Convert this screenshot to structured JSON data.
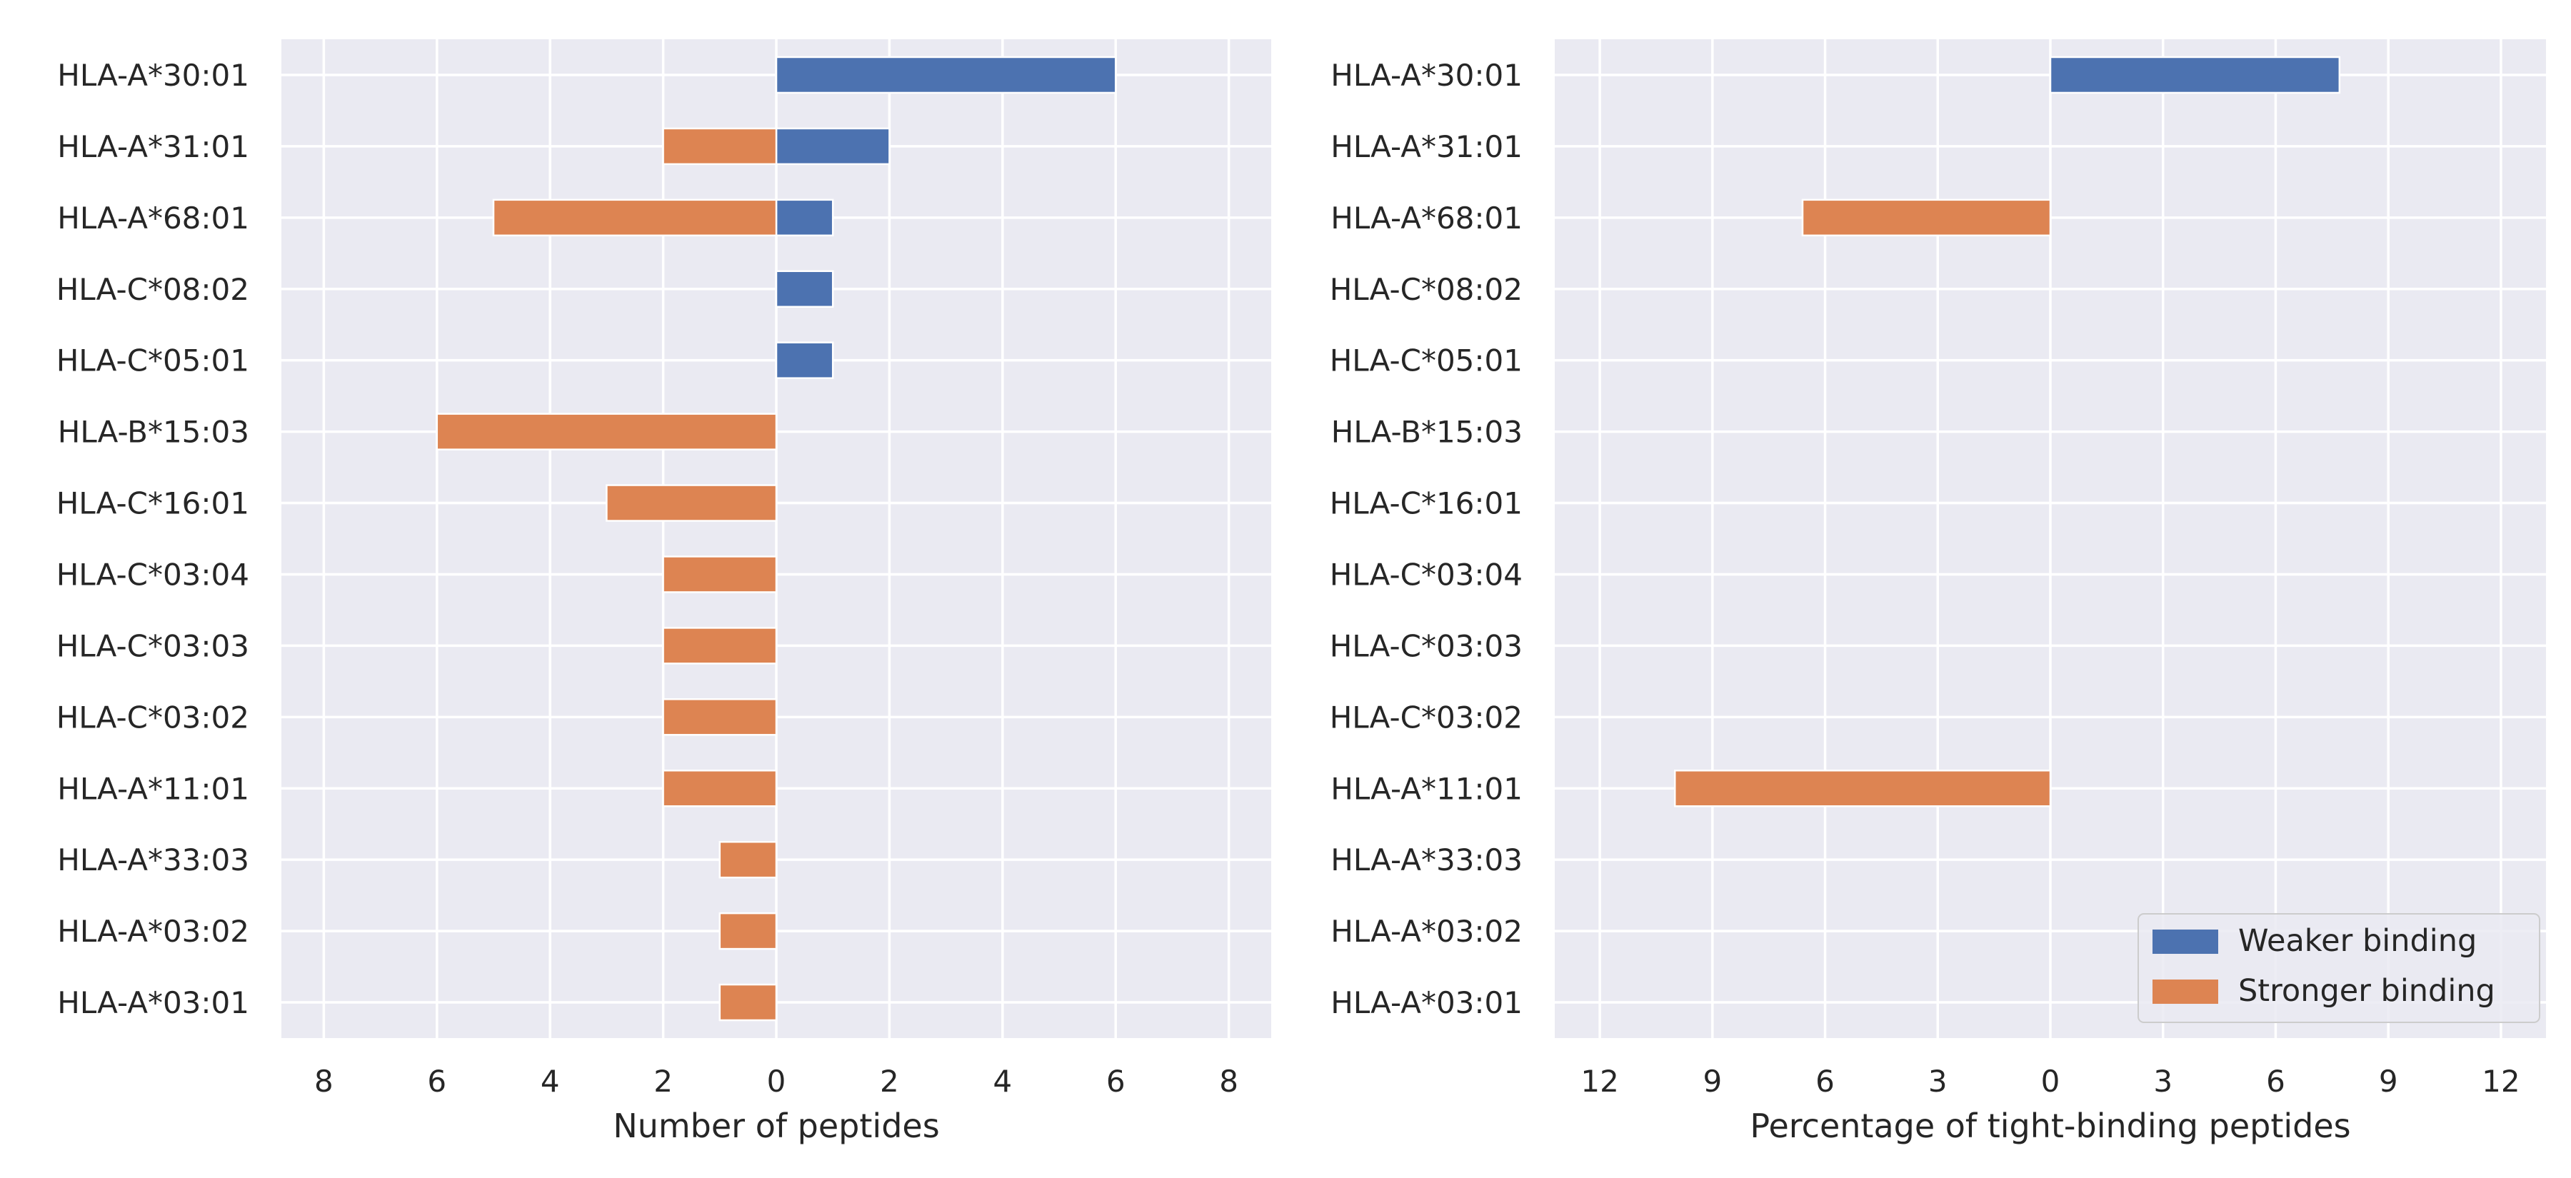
{
  "chart_data": [
    {
      "type": "bar",
      "orientation": "horizontal",
      "categories": [
        "HLA-A*30:01",
        "HLA-A*31:01",
        "HLA-A*68:01",
        "HLA-C*08:02",
        "HLA-C*05:01",
        "HLA-B*15:03",
        "HLA-C*16:01",
        "HLA-C*03:04",
        "HLA-C*03:03",
        "HLA-C*03:02",
        "HLA-A*11:01",
        "HLA-A*33:03",
        "HLA-A*03:02",
        "HLA-A*03:01"
      ],
      "series": [
        {
          "name": "Weaker binding",
          "color": "#4c72b0",
          "values": [
            6,
            2,
            1,
            1,
            1,
            0,
            0,
            0,
            0,
            0,
            0,
            0,
            0,
            0
          ]
        },
        {
          "name": "Stronger binding",
          "color": "#dd8452",
          "values": [
            0,
            -2,
            -5,
            0,
            0,
            -6,
            -3,
            -2,
            -2,
            -2,
            -2,
            -1,
            -1,
            -1
          ]
        }
      ],
      "xlabel": "Number of peptides",
      "xlim": [
        -8.75,
        8.75
      ],
      "xticks": [
        -8,
        -6,
        -4,
        -2,
        0,
        2,
        4,
        6,
        8
      ],
      "xtick_labels": [
        "8",
        "6",
        "4",
        "2",
        "0",
        "2",
        "4",
        "6",
        "8"
      ],
      "grid": true,
      "legend": false
    },
    {
      "type": "bar",
      "orientation": "horizontal",
      "categories": [
        "HLA-A*30:01",
        "HLA-A*31:01",
        "HLA-A*68:01",
        "HLA-C*08:02",
        "HLA-C*05:01",
        "HLA-B*15:03",
        "HLA-C*16:01",
        "HLA-C*03:04",
        "HLA-C*03:03",
        "HLA-C*03:02",
        "HLA-A*11:01",
        "HLA-A*33:03",
        "HLA-A*03:02",
        "HLA-A*03:01"
      ],
      "series": [
        {
          "name": "Weaker binding",
          "color": "#4c72b0",
          "values": [
            7.7,
            0,
            0,
            0,
            0,
            0,
            0,
            0,
            0,
            0,
            0,
            0,
            0,
            0
          ]
        },
        {
          "name": "Stronger binding",
          "color": "#dd8452",
          "values": [
            0,
            0,
            -6.6,
            0,
            0,
            0,
            0,
            0,
            0,
            0,
            -10,
            0,
            0,
            0
          ]
        }
      ],
      "xlabel": "Percentage of tight-binding peptides",
      "xlim": [
        -13.2,
        13.2
      ],
      "xticks": [
        -12,
        -9,
        -6,
        -3,
        0,
        3,
        6,
        9,
        12
      ],
      "xtick_labels": [
        "12",
        "9",
        "6",
        "3",
        "0",
        "3",
        "6",
        "9",
        "12"
      ],
      "grid": true,
      "legend": "bottom-right"
    }
  ]
}
